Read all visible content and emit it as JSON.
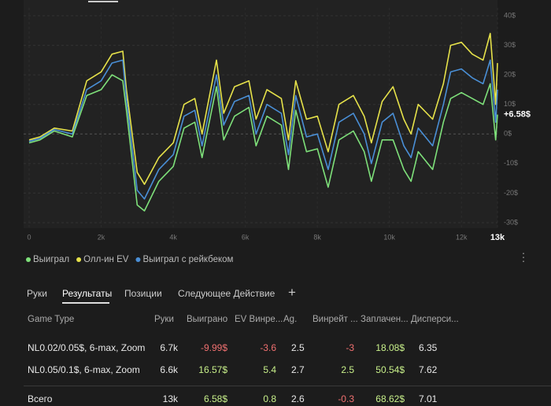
{
  "chart_data": {
    "type": "line",
    "x": [
      0,
      300,
      700,
      1200,
      1600,
      2000,
      2300,
      2600,
      2700,
      3000,
      3200,
      3600,
      4000,
      4300,
      4600,
      4800,
      5200,
      5400,
      5700,
      6100,
      6300,
      6600,
      7000,
      7200,
      7400,
      7700,
      8000,
      8300,
      8600,
      9000,
      9300,
      9500,
      9800,
      10100,
      10400,
      10600,
      10800,
      11200,
      11500,
      11700,
      12000,
      12300,
      12600,
      12800,
      12950,
      13000
    ],
    "series": [
      {
        "name": "Выиграл",
        "color": "#7ee07a",
        "values": [
          -3,
          -2,
          1,
          -1,
          13,
          15,
          20,
          18,
          8,
          -24,
          -26,
          -16,
          -11,
          2,
          4,
          -8,
          16,
          -2,
          6,
          9,
          -4,
          6,
          3,
          -12,
          8,
          -6,
          -5,
          -18,
          -2,
          1,
          -6,
          -16,
          -2,
          -2,
          -12,
          -16,
          -6,
          -12,
          4,
          12,
          14,
          12,
          10,
          17,
          -2,
          6.58
        ]
      },
      {
        "name": "Олл-ин EV",
        "color": "#e6e24a",
        "values": [
          -2,
          -1,
          2,
          1,
          18,
          21,
          27,
          28,
          15,
          -13,
          -17,
          -8,
          -3,
          10,
          12,
          0,
          25,
          7,
          16,
          18,
          5,
          15,
          12,
          -2,
          18,
          5,
          6,
          -6,
          10,
          13,
          6,
          -3,
          11,
          16,
          5,
          0,
          10,
          5,
          17,
          30,
          31,
          27,
          25,
          34,
          10,
          24
        ]
      },
      {
        "name": "Выиграл с рейкбеком",
        "color": "#4a8fd6",
        "values": [
          -2.5,
          -1.5,
          1.5,
          0,
          15,
          18,
          24,
          25,
          12,
          -19,
          -22,
          -12,
          -7,
          6,
          8,
          -4,
          20,
          3,
          11,
          13,
          0,
          10,
          7,
          -7,
          13,
          -1,
          0,
          -12,
          4,
          7,
          0,
          -10,
          4,
          7,
          -4,
          -8,
          2,
          -4,
          10,
          21,
          22,
          19,
          17,
          25,
          4,
          15
        ]
      }
    ],
    "xlim": [
      0,
      13000
    ],
    "xticks": [
      {
        "value": 0,
        "label": "0"
      },
      {
        "value": 2000,
        "label": "2k"
      },
      {
        "value": 4000,
        "label": "4k"
      },
      {
        "value": 6000,
        "label": "6k"
      },
      {
        "value": 8000,
        "label": "8k"
      },
      {
        "value": 10000,
        "label": "10k"
      },
      {
        "value": 12000,
        "label": "12k"
      },
      {
        "value": 13000,
        "label": "13k"
      }
    ],
    "ylim": [
      -30,
      40
    ],
    "yticks": [
      {
        "value": 40,
        "label": "40$"
      },
      {
        "value": 30,
        "label": "30$"
      },
      {
        "value": 20,
        "label": "20$"
      },
      {
        "value": 10,
        "label": "10$"
      },
      {
        "value": 0,
        "label": "0$"
      },
      {
        "value": -10,
        "label": "-10$"
      },
      {
        "value": -20,
        "label": "-20$"
      },
      {
        "value": -30,
        "label": "-30$"
      }
    ],
    "annotation": "+6.58$",
    "grid": true
  },
  "tabs": [
    "Руки",
    "Результаты",
    "Позиции",
    "Следующее Действие",
    "+"
  ],
  "table": {
    "columns": [
      "Game Type",
      "Руки",
      "Выиграно",
      "EV Винре...",
      "Ag.",
      "Винрейт ...",
      "Заплачен...",
      "Дисперси..."
    ],
    "rows": [
      [
        "NL0.02/0.05$, 6-max, Zoom",
        "6.7k",
        "-9.99$",
        "-3.6",
        "2.5",
        "-3",
        "18.08$",
        "6.35"
      ],
      [
        "NL0.05/0.1$, 6-max, Zoom",
        "6.6k",
        "16.57$",
        "5.4",
        "2.7",
        "2.5",
        "50.54$",
        "7.62"
      ]
    ],
    "total": [
      "Всего",
      "13k",
      "6.58$",
      "0.8",
      "2.6",
      "-0.3",
      "68.62$",
      "7.01"
    ]
  }
}
